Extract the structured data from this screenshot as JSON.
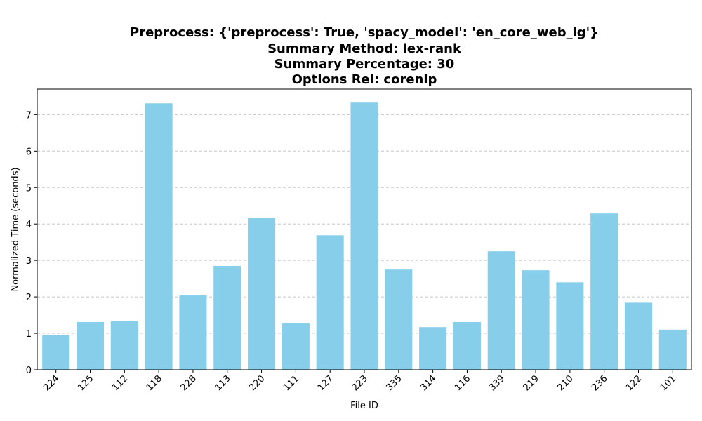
{
  "chart_data": {
    "type": "bar",
    "title_lines": [
      "Preprocess: {'preprocess': True, 'spacy_model': 'en_core_web_lg'}",
      "Summary Method: lex-rank",
      "Summary Percentage: 30",
      "Options Rel: corenlp"
    ],
    "xlabel": "File ID",
    "ylabel": "Normalized Time (seconds)",
    "categories": [
      "224",
      "125",
      "112",
      "118",
      "228",
      "113",
      "220",
      "111",
      "127",
      "223",
      "335",
      "314",
      "116",
      "339",
      "219",
      "210",
      "236",
      "122",
      "101"
    ],
    "values": [
      0.95,
      1.31,
      1.33,
      7.31,
      2.04,
      2.85,
      4.17,
      1.27,
      3.69,
      7.33,
      2.75,
      1.17,
      1.31,
      3.25,
      2.73,
      2.4,
      4.29,
      1.84,
      1.1
    ],
    "ylim": [
      0,
      7.7
    ],
    "yticks": [
      0,
      1,
      2,
      3,
      4,
      5,
      6,
      7
    ],
    "grid": "y-dashed",
    "bar_color": "#87ceeb",
    "grid_color": "#c8c8c8"
  }
}
